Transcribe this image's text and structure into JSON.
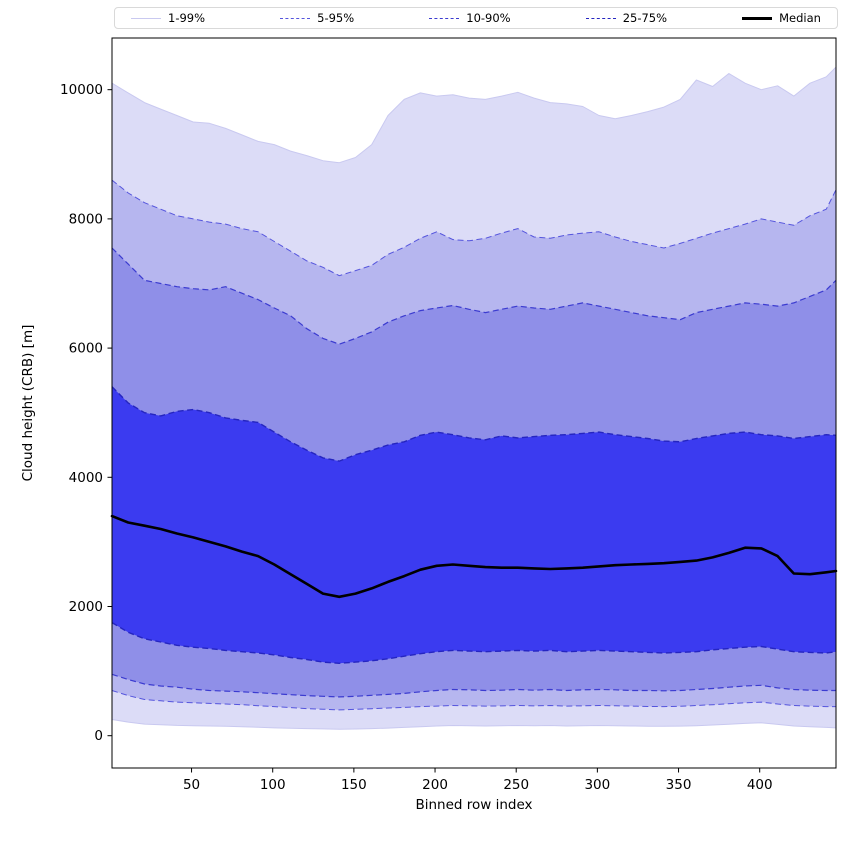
{
  "chart_data": {
    "type": "area",
    "title": "",
    "xlabel": "Binned row index",
    "ylabel": "Cloud height (CRB) [m]",
    "xlim": [
      1,
      447
    ],
    "ylim": [
      -500,
      10800
    ],
    "xticks": [
      50,
      100,
      150,
      200,
      250,
      300,
      350,
      400
    ],
    "yticks": [
      0,
      2000,
      4000,
      6000,
      8000,
      10000
    ],
    "grid": false,
    "legend": {
      "position": "top",
      "entries": [
        "1-99%",
        "5-95%",
        "10-90%",
        "25-75%",
        "Median"
      ]
    },
    "x": [
      1,
      11,
      21,
      31,
      41,
      51,
      61,
      71,
      81,
      91,
      101,
      111,
      121,
      131,
      141,
      151,
      161,
      171,
      181,
      191,
      201,
      211,
      221,
      231,
      241,
      251,
      261,
      271,
      281,
      291,
      301,
      311,
      321,
      331,
      341,
      351,
      361,
      371,
      381,
      391,
      401,
      411,
      421,
      431,
      441,
      447
    ],
    "bands": [
      {
        "name": "1-99%",
        "fill": "#dcdcf7",
        "edge": "#c9c9f0",
        "edge_style": "solid",
        "edge_width": 1,
        "upper": [
          10100,
          9950,
          9800,
          9700,
          9600,
          9500,
          9480,
          9400,
          9300,
          9200,
          9150,
          9050,
          8980,
          8900,
          8870,
          8950,
          9150,
          9600,
          9850,
          9950,
          9900,
          9920,
          9870,
          9850,
          9900,
          9960,
          9870,
          9800,
          9780,
          9740,
          9600,
          9550,
          9600,
          9660,
          9730,
          9850,
          10150,
          10050,
          10250,
          10100,
          10000,
          10060,
          9900,
          10100,
          10200,
          10350
        ],
        "lower": [
          250,
          210,
          180,
          170,
          160,
          155,
          150,
          145,
          140,
          130,
          120,
          115,
          110,
          105,
          100,
          104,
          110,
          118,
          128,
          140,
          150,
          158,
          155,
          150,
          153,
          158,
          153,
          158,
          150,
          154,
          158,
          154,
          150,
          147,
          145,
          148,
          155,
          165,
          178,
          190,
          200,
          175,
          150,
          140,
          128,
          120
        ]
      },
      {
        "name": "5-95%",
        "fill": "#b6b6ef",
        "edge": "#5555dd",
        "edge_style": "dashed",
        "edge_width": 1,
        "upper": [
          8600,
          8400,
          8250,
          8150,
          8050,
          8000,
          7950,
          7920,
          7850,
          7800,
          7650,
          7500,
          7350,
          7250,
          7120,
          7200,
          7280,
          7450,
          7560,
          7700,
          7800,
          7680,
          7660,
          7700,
          7780,
          7850,
          7720,
          7700,
          7750,
          7780,
          7800,
          7720,
          7650,
          7600,
          7550,
          7620,
          7700,
          7780,
          7850,
          7920,
          8000,
          7950,
          7900,
          8050,
          8150,
          8450
        ],
        "lower": [
          700,
          620,
          560,
          540,
          520,
          510,
          500,
          490,
          480,
          465,
          450,
          435,
          420,
          410,
          400,
          408,
          418,
          428,
          438,
          450,
          458,
          468,
          463,
          458,
          462,
          468,
          462,
          468,
          458,
          463,
          468,
          463,
          458,
          452,
          450,
          455,
          468,
          480,
          495,
          510,
          520,
          490,
          468,
          458,
          450,
          450
        ]
      },
      {
        "name": "10-90%",
        "fill": "#8f8fe8",
        "edge": "#3b3bd0",
        "edge_style": "dashed",
        "edge_width": 1.2,
        "upper": [
          7550,
          7300,
          7050,
          7000,
          6950,
          6920,
          6900,
          6950,
          6850,
          6750,
          6620,
          6500,
          6300,
          6150,
          6060,
          6150,
          6250,
          6400,
          6500,
          6580,
          6620,
          6660,
          6600,
          6550,
          6600,
          6650,
          6620,
          6600,
          6650,
          6700,
          6650,
          6600,
          6550,
          6500,
          6470,
          6440,
          6550,
          6600,
          6650,
          6700,
          6680,
          6650,
          6700,
          6800,
          6900,
          7050
        ],
        "lower": [
          950,
          870,
          800,
          770,
          750,
          720,
          700,
          690,
          680,
          665,
          650,
          635,
          620,
          610,
          600,
          610,
          625,
          640,
          655,
          680,
          700,
          715,
          710,
          700,
          705,
          715,
          705,
          715,
          700,
          710,
          715,
          710,
          700,
          700,
          695,
          700,
          715,
          730,
          750,
          770,
          780,
          740,
          715,
          705,
          700,
          700
        ]
      },
      {
        "name": "25-75%",
        "fill": "#3b3bf0",
        "edge": "#2525c0",
        "edge_style": "dashed",
        "edge_width": 1.4,
        "upper": [
          5400,
          5150,
          5000,
          4950,
          5020,
          5050,
          5000,
          4920,
          4880,
          4850,
          4700,
          4550,
          4420,
          4300,
          4250,
          4350,
          4420,
          4500,
          4550,
          4650,
          4700,
          4660,
          4610,
          4580,
          4640,
          4610,
          4630,
          4650,
          4660,
          4680,
          4700,
          4660,
          4630,
          4600,
          4560,
          4550,
          4600,
          4640,
          4680,
          4700,
          4660,
          4640,
          4600,
          4630,
          4660,
          4650
        ],
        "lower": [
          1750,
          1600,
          1500,
          1450,
          1400,
          1370,
          1350,
          1320,
          1300,
          1280,
          1250,
          1210,
          1180,
          1140,
          1120,
          1140,
          1160,
          1190,
          1230,
          1270,
          1300,
          1320,
          1310,
          1300,
          1310,
          1320,
          1310,
          1320,
          1300,
          1310,
          1320,
          1310,
          1300,
          1290,
          1280,
          1290,
          1300,
          1330,
          1350,
          1370,
          1380,
          1340,
          1300,
          1290,
          1280,
          1300
        ]
      }
    ],
    "median": {
      "name": "Median",
      "color": "#000000",
      "width": 2.6,
      "values": [
        3400,
        3300,
        3250,
        3200,
        3130,
        3070,
        3000,
        2930,
        2850,
        2780,
        2650,
        2500,
        2350,
        2200,
        2150,
        2200,
        2280,
        2380,
        2470,
        2570,
        2630,
        2650,
        2630,
        2610,
        2600,
        2600,
        2590,
        2580,
        2590,
        2600,
        2620,
        2640,
        2650,
        2660,
        2670,
        2690,
        2710,
        2760,
        2830,
        2910,
        2900,
        2780,
        2510,
        2500,
        2530,
        2550
      ]
    }
  }
}
